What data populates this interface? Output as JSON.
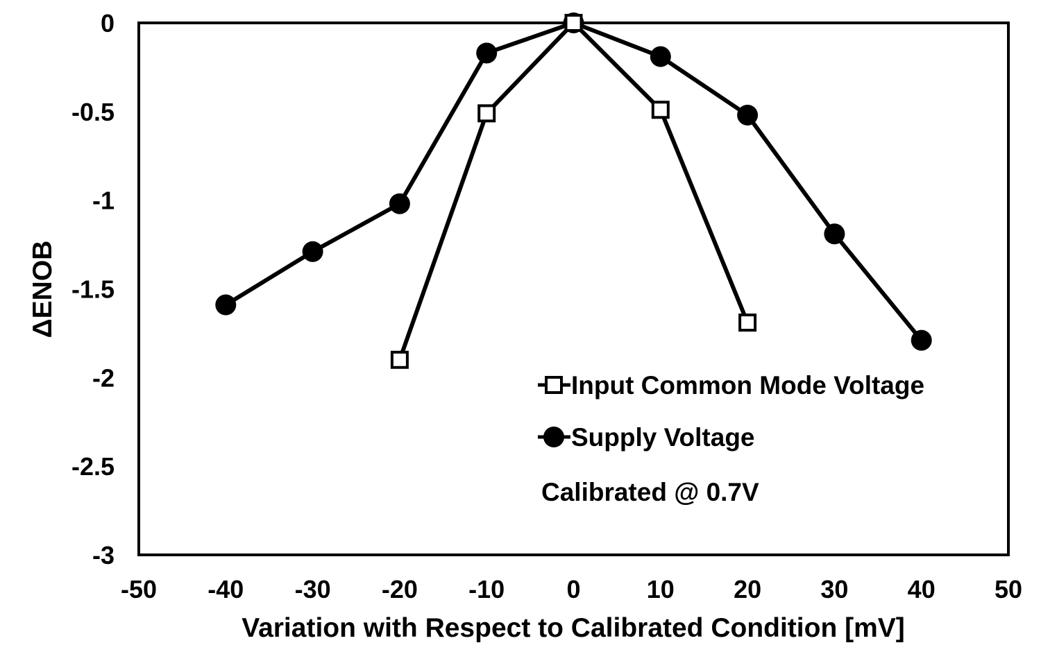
{
  "chart_data": {
    "type": "line",
    "title": "",
    "xlabel": "Variation with Respect to Calibrated Condition [mV]",
    "ylabel": "ΔENOB",
    "xlim": [
      -50,
      50
    ],
    "ylim": [
      -3,
      0
    ],
    "x_ticks": [
      "-50",
      "-40",
      "-30",
      "-20",
      "-10",
      "0",
      "10",
      "20",
      "30",
      "40",
      "50"
    ],
    "y_ticks": [
      "0",
      "-0.5",
      "-1",
      "-1.5",
      "-2",
      "-2.5",
      "-3"
    ],
    "grid": false,
    "legend_position": "lower-right",
    "series": [
      {
        "name": "Input Common Mode Voltage",
        "marker": "open-square",
        "x": [
          -20,
          -10,
          0,
          10,
          20
        ],
        "y": [
          -1.9,
          -0.51,
          0,
          -0.49,
          -1.69
        ]
      },
      {
        "name": "Supply Voltage",
        "marker": "filled-circle",
        "x": [
          -40,
          -30,
          -20,
          -10,
          0,
          10,
          20,
          30,
          40
        ],
        "y": [
          -1.59,
          -1.29,
          -1.02,
          -0.17,
          0,
          -0.19,
          -0.52,
          -1.19,
          -1.79
        ]
      }
    ],
    "annotations": [
      "Calibrated @ 0.7V"
    ],
    "colors": {
      "line": "#000000",
      "background": "#ffffff"
    }
  }
}
